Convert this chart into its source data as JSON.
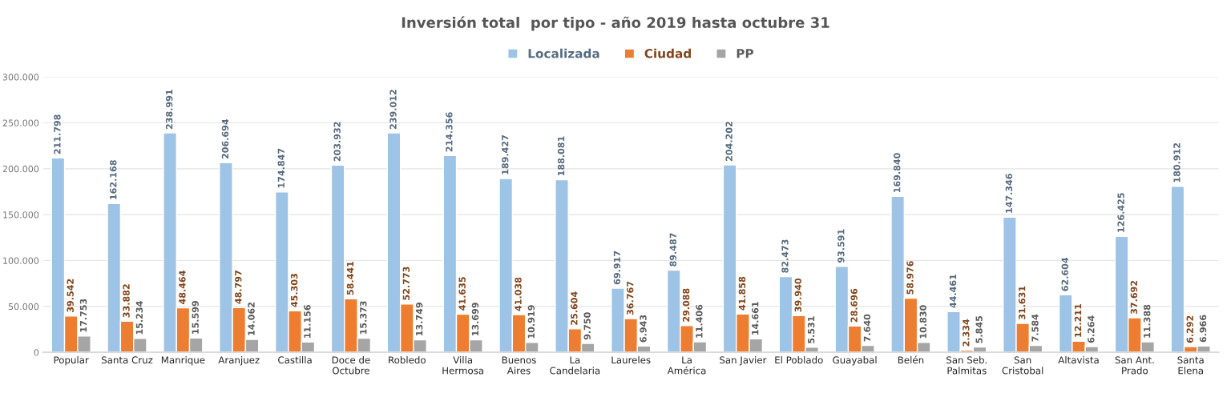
{
  "chart_data": {
    "type": "bar",
    "title": "Inversión total  por tipo - año 2019 hasta octubre 31",
    "categories": [
      "Popular",
      "Santa Cruz",
      "Manrique",
      "Aranjuez",
      "Castilla",
      "Doce de\nOctubre",
      "Robledo",
      "Villa\nHermosa",
      "Buenos\nAires",
      "La\nCandelaria",
      "Laureles",
      "La\nAmérica",
      "San Javier",
      "El Poblado",
      "Guayabal",
      "Belén",
      "San Seb.\nPalmitas",
      "San\nCristobal",
      "Altavista",
      "San Ant.\nPrado",
      "Santa\nElena"
    ],
    "series": [
      {
        "name": "Localizada",
        "color": "#9dc3e6",
        "values": [
          211798,
          162168,
          238991,
          206694,
          174847,
          203932,
          239012,
          214356,
          189427,
          188081,
          69917,
          89487,
          204202,
          82473,
          93591,
          169840,
          44461,
          147346,
          62604,
          126425,
          180912
        ],
        "value_labels": [
          "211.798",
          "162.168",
          "238.991",
          "206.694",
          "174.847",
          "203.932",
          "239.012",
          "214.356",
          "189.427",
          "188.081",
          "69.917",
          "89.487",
          "204.202",
          "82.473",
          "93.591",
          "169.840",
          "44.461",
          "147.346",
          "62.604",
          "126.425",
          "180.912"
        ]
      },
      {
        "name": "Ciudad",
        "color": "#ed7d31",
        "values": [
          39542,
          33882,
          48464,
          48797,
          45303,
          58441,
          52773,
          41635,
          41038,
          25604,
          36767,
          29088,
          41858,
          39940,
          28696,
          58976,
          2334,
          31631,
          12211,
          37692,
          6292
        ],
        "value_labels": [
          "39.542",
          "33.882",
          "48.464",
          "48.797",
          "45.303",
          "58.441",
          "52.773",
          "41.635",
          "41.038",
          "25.604",
          "36.767",
          "29.088",
          "41.858",
          "39.940",
          "28.696",
          "58.976",
          "2.334",
          "31.631",
          "12.211",
          "37.692",
          "6.292"
        ]
      },
      {
        "name": "PP",
        "color": "#a5a5a5",
        "values": [
          17753,
          15234,
          15599,
          14062,
          11156,
          15373,
          13749,
          13699,
          10919,
          9750,
          6943,
          11406,
          14661,
          5531,
          7640,
          10830,
          5845,
          7584,
          6264,
          11388,
          6966
        ],
        "value_labels": [
          "17.753",
          "15.234",
          "15.599",
          "14.062",
          "11.156",
          "15.373",
          "13.749",
          "13.699",
          "10.919",
          "9.750",
          "6.943",
          "11.406",
          "14.661",
          "5.531",
          "7.640",
          "10.830",
          "5.845",
          "7.584",
          "6.264",
          "11.388",
          "6.966"
        ]
      }
    ],
    "ylim": [
      0,
      300000
    ],
    "yticks": [
      0,
      {
        "value": 50000,
        "label": "50.000"
      },
      {
        "value": 100000,
        "label": "100.000"
      },
      {
        "value": 150000,
        "label": "150.000"
      },
      {
        "value": 200000,
        "label": "200.000"
      },
      {
        "value": 250000,
        "label": "250.000"
      },
      {
        "value": 300000,
        "label": "300.000"
      }
    ],
    "grid": "y",
    "legend": "top"
  }
}
